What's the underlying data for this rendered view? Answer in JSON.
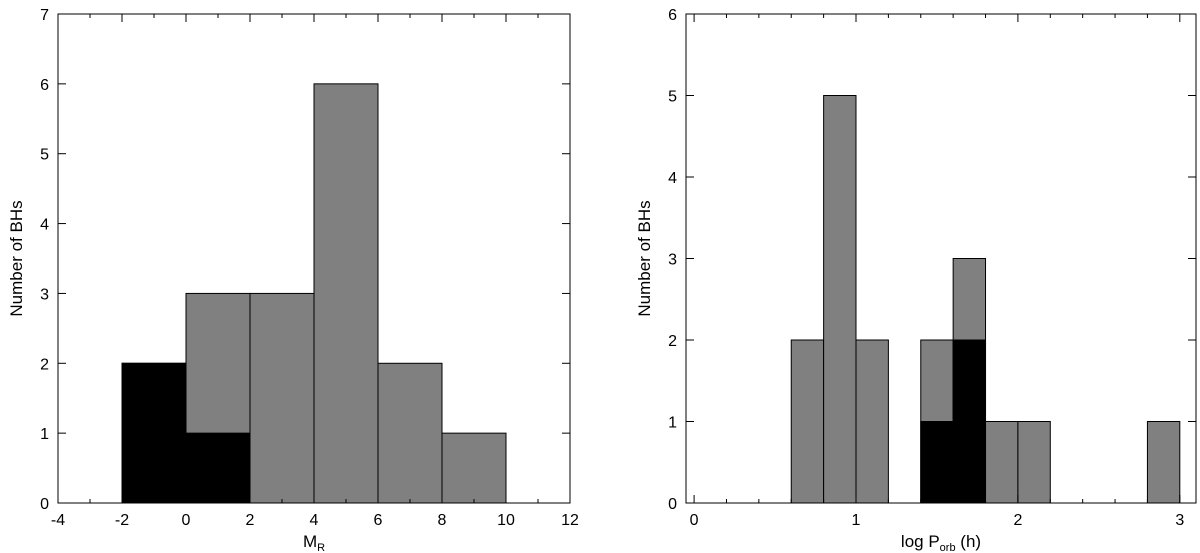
{
  "chart_data": [
    {
      "type": "bar",
      "xlabel": "M",
      "xlabel_subscript": "R",
      "xlabel_suffix": "",
      "ylabel": "Number of BHs",
      "xlim": [
        -4,
        12
      ],
      "ylim": [
        0,
        7
      ],
      "xticks": [
        -4,
        -2,
        0,
        2,
        4,
        6,
        8,
        10,
        12
      ],
      "yticks": [
        0,
        1,
        2,
        3,
        4,
        5,
        6,
        7
      ],
      "xminor_step": 1,
      "bin_colors": {
        "grey": "#808080",
        "black": "#000000"
      },
      "series": [
        {
          "color": "#808080",
          "bins": [
            {
              "x0": -2,
              "x1": 0,
              "value": 2
            },
            {
              "x0": 0,
              "x1": 2,
              "value": 3
            },
            {
              "x0": 2,
              "x1": 4,
              "value": 3
            },
            {
              "x0": 4,
              "x1": 6,
              "value": 6
            },
            {
              "x0": 6,
              "x1": 8,
              "value": 2
            },
            {
              "x0": 8,
              "x1": 10,
              "value": 1
            }
          ]
        },
        {
          "color": "#000000",
          "bins": [
            {
              "x0": -2,
              "x1": 0,
              "value": 2
            },
            {
              "x0": 0,
              "x1": 2,
              "value": 1
            }
          ]
        }
      ]
    },
    {
      "type": "bar",
      "xlabel": "log P",
      "xlabel_subscript": "orb",
      "xlabel_suffix": " (h)",
      "ylabel": "Number of BHs",
      "xlim": [
        -0.05,
        3.1
      ],
      "ylim": [
        0,
        6
      ],
      "xticks": [
        0,
        1,
        2,
        3
      ],
      "yticks": [
        0,
        1,
        2,
        3,
        4,
        5,
        6
      ],
      "xminor_step": 0.2,
      "series": [
        {
          "color": "#808080",
          "bins": [
            {
              "x0": 0.6,
              "x1": 0.8,
              "value": 2
            },
            {
              "x0": 0.8,
              "x1": 1.0,
              "value": 5
            },
            {
              "x0": 1.0,
              "x1": 1.2,
              "value": 2
            },
            {
              "x0": 1.4,
              "x1": 1.6,
              "value": 2
            },
            {
              "x0": 1.6,
              "x1": 1.8,
              "value": 3
            },
            {
              "x0": 1.8,
              "x1": 2.0,
              "value": 1
            },
            {
              "x0": 2.0,
              "x1": 2.2,
              "value": 1
            },
            {
              "x0": 2.8,
              "x1": 3.0,
              "value": 1
            }
          ]
        },
        {
          "color": "#000000",
          "bins": [
            {
              "x0": 1.4,
              "x1": 1.6,
              "value": 1
            },
            {
              "x0": 1.6,
              "x1": 1.8,
              "value": 2
            }
          ]
        }
      ]
    }
  ]
}
